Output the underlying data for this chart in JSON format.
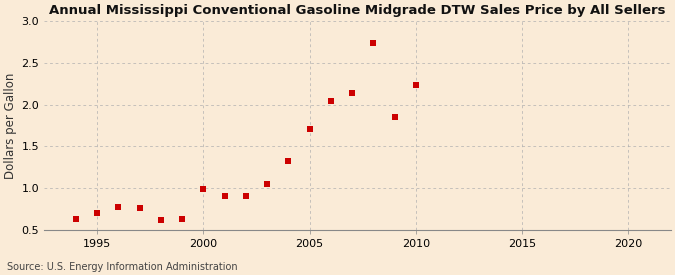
{
  "title": "Annual Mississippi Conventional Gasoline Midgrade DTW Sales Price by All Sellers",
  "ylabel": "Dollars per Gallon",
  "source": "Source: U.S. Energy Information Administration",
  "background_color": "#faebd7",
  "marker_color": "#cc0000",
  "years": [
    1994,
    1995,
    1996,
    1997,
    1998,
    1999,
    2000,
    2001,
    2002,
    2003,
    2004,
    2005,
    2006,
    2007,
    2008,
    2009,
    2010
  ],
  "values": [
    0.63,
    0.7,
    0.77,
    0.76,
    0.62,
    0.63,
    0.99,
    0.91,
    0.91,
    1.05,
    1.33,
    1.71,
    2.04,
    2.14,
    2.74,
    1.85,
    2.23
  ],
  "xlim": [
    1992.5,
    2022
  ],
  "ylim": [
    0.5,
    3.0
  ],
  "yticks": [
    0.5,
    1.0,
    1.5,
    2.0,
    2.5,
    3.0
  ],
  "xticks": [
    1995,
    2000,
    2005,
    2010,
    2015,
    2020
  ],
  "title_fontsize": 9.5,
  "label_fontsize": 8.5,
  "tick_fontsize": 8,
  "source_fontsize": 7
}
